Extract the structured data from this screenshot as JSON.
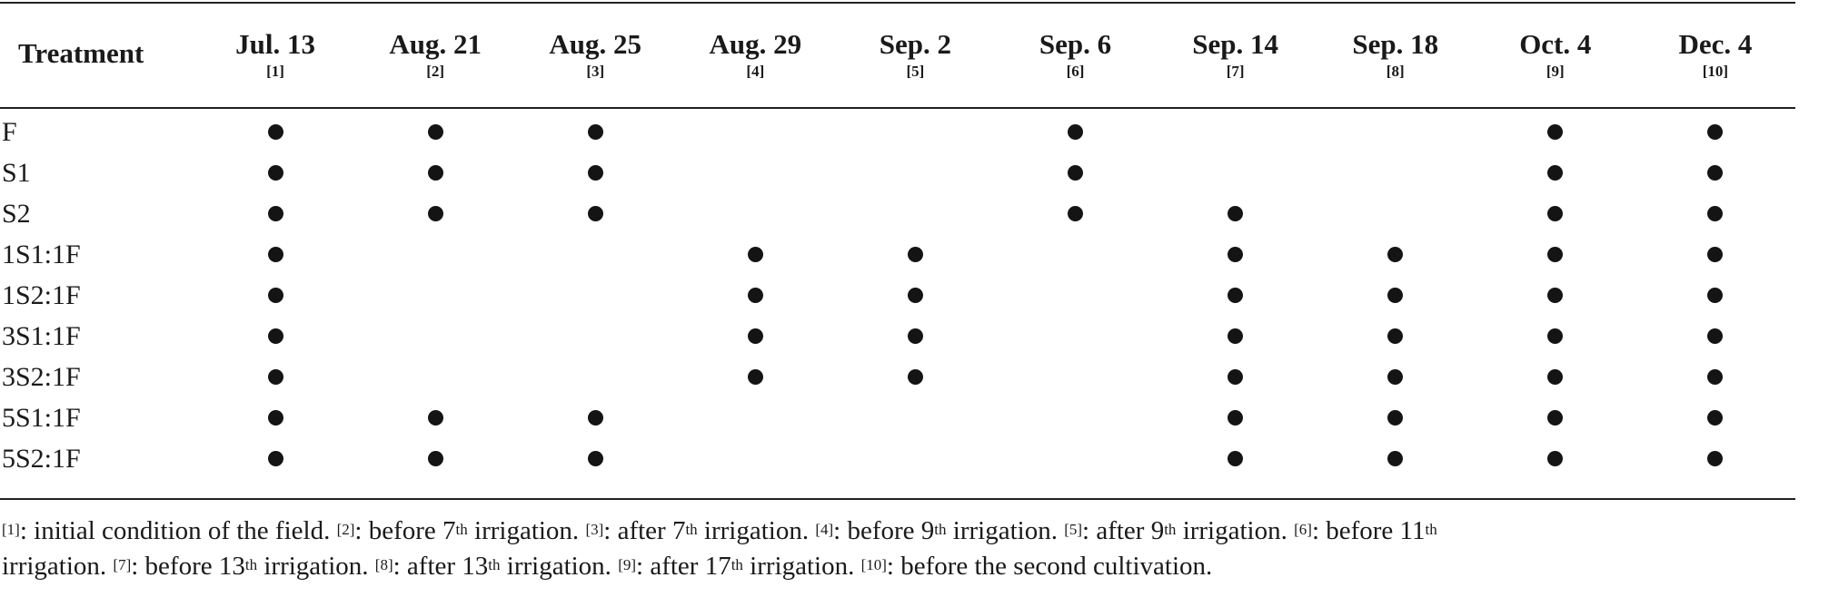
{
  "table": {
    "header_treatment": "Treatment",
    "columns": [
      {
        "date": "Jul. 13",
        "ref": "[1]"
      },
      {
        "date": "Aug. 21",
        "ref": "[2]"
      },
      {
        "date": "Aug. 25",
        "ref": "[3]"
      },
      {
        "date": "Aug. 29",
        "ref": "[4]"
      },
      {
        "date": "Sep. 2",
        "ref": "[5]"
      },
      {
        "date": "Sep. 6",
        "ref": "[6]"
      },
      {
        "date": "Sep. 14",
        "ref": "[7]"
      },
      {
        "date": "Sep. 18",
        "ref": "[8]"
      },
      {
        "date": "Oct. 4",
        "ref": "[9]"
      },
      {
        "date": "Dec. 4",
        "ref": "[10]"
      }
    ],
    "rows": [
      {
        "name": "F",
        "marks": [
          1,
          1,
          1,
          0,
          0,
          1,
          0,
          0,
          1,
          1
        ]
      },
      {
        "name": "S1",
        "marks": [
          1,
          1,
          1,
          0,
          0,
          1,
          0,
          0,
          1,
          1
        ]
      },
      {
        "name": "S2",
        "marks": [
          1,
          1,
          1,
          0,
          0,
          1,
          1,
          0,
          1,
          1
        ]
      },
      {
        "name": "1S1:1F",
        "marks": [
          1,
          0,
          0,
          1,
          1,
          0,
          1,
          1,
          1,
          1
        ]
      },
      {
        "name": "1S2:1F",
        "marks": [
          1,
          0,
          0,
          1,
          1,
          0,
          1,
          1,
          1,
          1
        ]
      },
      {
        "name": "3S1:1F",
        "marks": [
          1,
          0,
          0,
          1,
          1,
          0,
          1,
          1,
          1,
          1
        ]
      },
      {
        "name": "3S2:1F",
        "marks": [
          1,
          0,
          0,
          1,
          1,
          0,
          1,
          1,
          1,
          1
        ]
      },
      {
        "name": "5S1:1F",
        "marks": [
          1,
          1,
          1,
          0,
          0,
          0,
          1,
          1,
          1,
          1
        ]
      },
      {
        "name": "5S2:1F",
        "marks": [
          1,
          1,
          1,
          0,
          0,
          0,
          1,
          1,
          1,
          1
        ]
      }
    ]
  },
  "footnote": {
    "line1": [
      {
        "ref": "[1]",
        "pre": ": initial condition of the field. ",
        "sup": "",
        "post": ""
      },
      {
        "ref": "[2]",
        "pre": ": before 7",
        "sup": "th",
        "post": " irrigation. "
      },
      {
        "ref": "[3]",
        "pre": ": after 7",
        "sup": "th",
        "post": " irrigation. "
      },
      {
        "ref": "[4]",
        "pre": ": before 9",
        "sup": "th",
        "post": " irrigation. "
      },
      {
        "ref": "[5]",
        "pre": ": after 9",
        "sup": "th",
        "post": " irrigation. "
      },
      {
        "ref": "[6]",
        "pre": ": before 11",
        "sup": "th",
        "post": ""
      }
    ],
    "line2": [
      {
        "ref": "",
        "pre": "irrigation. ",
        "sup": "",
        "post": ""
      },
      {
        "ref": "[7]",
        "pre": ": before 13",
        "sup": "th",
        "post": " irrigation. "
      },
      {
        "ref": "[8]",
        "pre": ": after 13",
        "sup": "th",
        "post": " irrigation. "
      },
      {
        "ref": "[9]",
        "pre": ": after 17",
        "sup": "th",
        "post": " irrigation. "
      },
      {
        "ref": "[10]",
        "pre": ": before the second cultivation.",
        "sup": "",
        "post": ""
      }
    ]
  },
  "colors": {
    "text": "#1a1a1a",
    "dot": "#141414",
    "rule": "#222222"
  }
}
